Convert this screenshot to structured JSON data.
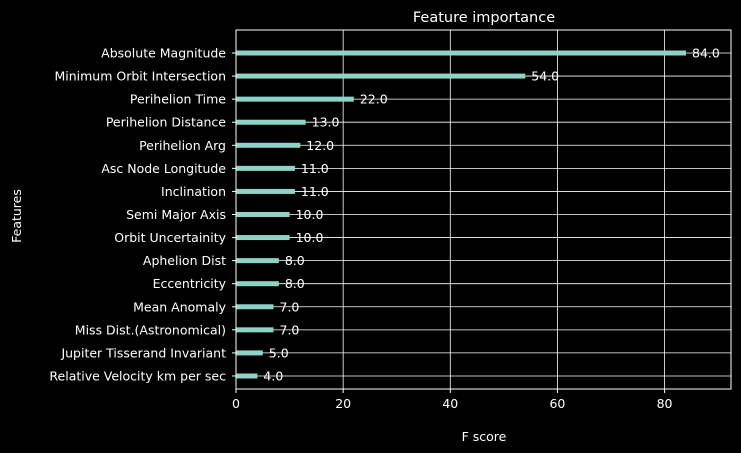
{
  "chart_data": {
    "type": "bar",
    "orientation": "horizontal",
    "title": "Feature importance",
    "xlabel": "F score",
    "ylabel": "Features",
    "xlim": [
      0,
      92.4
    ],
    "xticks": [
      0,
      20,
      40,
      60,
      80
    ],
    "grid": true,
    "categories": [
      "Absolute Magnitude",
      "Minimum Orbit Intersection",
      "Perihelion Time",
      "Perihelion Distance",
      "Perihelion Arg",
      "Asc Node Longitude",
      "Inclination",
      "Semi Major Axis",
      "Orbit Uncertainity",
      "Aphelion Dist",
      "Eccentricity",
      "Mean Anomaly",
      "Miss Dist.(Astronomical)",
      "Jupiter Tisserand Invariant",
      "Relative Velocity km per sec"
    ],
    "values": [
      84,
      54,
      22,
      13,
      12,
      11,
      11,
      10,
      10,
      8,
      8,
      7,
      7,
      5,
      4
    ],
    "data_labels": [
      "84.0",
      "54.0",
      "22.0",
      "13.0",
      "12.0",
      "11.0",
      "11.0",
      "10.0",
      "10.0",
      "8.0",
      "8.0",
      "7.0",
      "7.0",
      "5.0",
      "4.0"
    ],
    "colors": {
      "background": "#000000",
      "bar": "#8dd3c7",
      "text": "#ffffff",
      "grid": "#ffffff"
    }
  }
}
